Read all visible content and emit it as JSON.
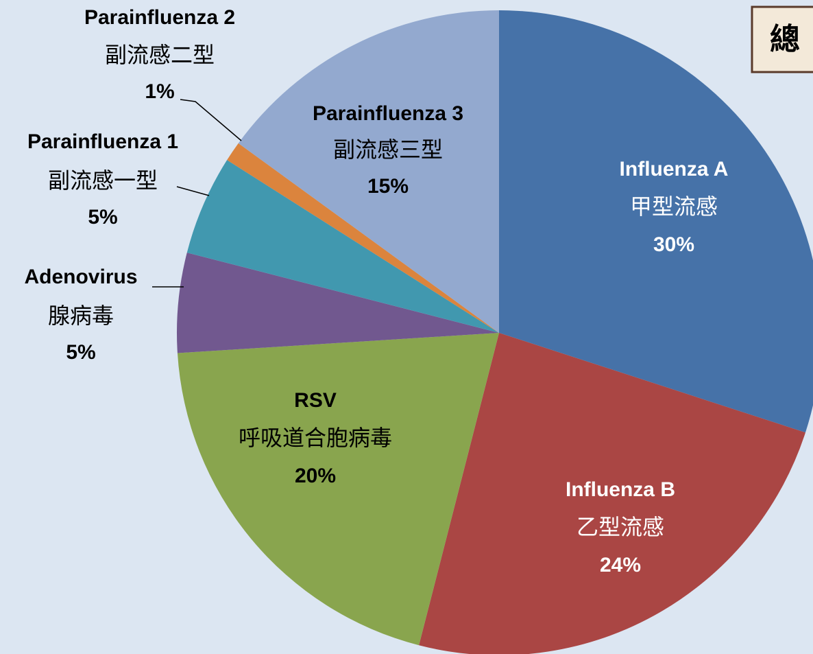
{
  "chart_data": {
    "type": "pie",
    "title": "總",
    "categories": [
      "Influenza A",
      "Influenza B",
      "RSV",
      "Adenovirus",
      "Parainfluenza 1",
      "Parainfluenza 2",
      "Parainfluenza 3"
    ],
    "categories_zh": [
      "甲型流感",
      "乙型流感",
      "呼吸道合胞病毒",
      "腺病毒",
      "副流感一型",
      "副流感二型",
      "副流感三型"
    ],
    "values": [
      30,
      24,
      20,
      5,
      5,
      1,
      15
    ],
    "value_labels": [
      "30%",
      "24%",
      "20%",
      "5%",
      "5%",
      "1%",
      "15%"
    ],
    "colors": [
      "#4672a8",
      "#aa4644",
      "#89a54e",
      "#71588f",
      "#4198af",
      "#db843d",
      "#93a9cf"
    ]
  }
}
